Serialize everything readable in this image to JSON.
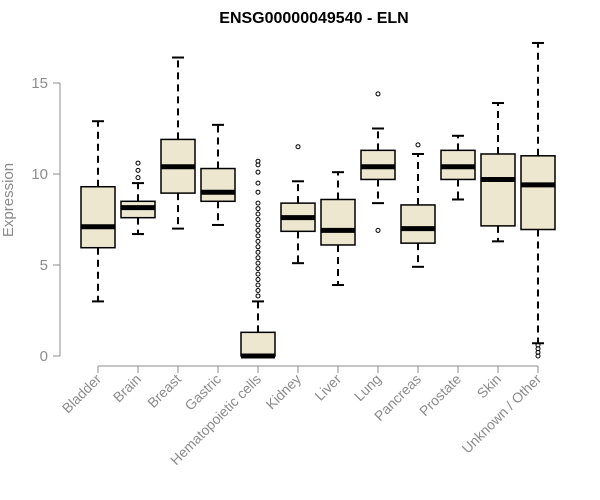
{
  "chart_data": {
    "type": "box",
    "title": "ENSG00000049540 - ELN",
    "ylabel": "Expression",
    "xlabel": "",
    "ylim": [
      0,
      17.3
    ],
    "yticks": [
      0,
      5,
      10,
      15
    ],
    "grid": false,
    "categories": [
      "Bladder",
      "Brain",
      "Breast",
      "Gastric",
      "Hematopoietic cells",
      "Kidney",
      "Liver",
      "Lung",
      "Pancreas",
      "Prostate",
      "Skin",
      "Unknown / Other"
    ],
    "boxes": [
      {
        "min": 3.0,
        "q1": 5.95,
        "median": 7.1,
        "q3": 9.3,
        "max": 12.9,
        "outliers": []
      },
      {
        "min": 6.7,
        "q1": 7.6,
        "median": 8.15,
        "q3": 8.5,
        "max": 9.5,
        "outliers": [
          9.8,
          10.2,
          10.6
        ]
      },
      {
        "min": 7.0,
        "q1": 8.95,
        "median": 10.4,
        "q3": 11.9,
        "max": 16.4,
        "outliers": []
      },
      {
        "min": 7.2,
        "q1": 8.5,
        "median": 9.0,
        "q3": 10.3,
        "max": 12.7,
        "outliers": []
      },
      {
        "min": 0.0,
        "q1": 0.0,
        "median": 0.0,
        "q3": 1.3,
        "max": 3.0,
        "outliers": [
          3.3,
          3.6,
          3.9,
          4.2,
          4.5,
          4.8,
          5.1,
          5.4,
          5.7,
          6.0,
          6.3,
          6.6,
          6.9,
          7.2,
          7.5,
          7.8,
          8.1,
          8.4,
          9.0,
          9.5,
          10.1,
          10.5,
          10.7
        ]
      },
      {
        "min": 5.1,
        "q1": 6.85,
        "median": 7.6,
        "q3": 8.4,
        "max": 9.6,
        "outliers": [
          11.5
        ]
      },
      {
        "min": 3.9,
        "q1": 6.1,
        "median": 6.9,
        "q3": 8.6,
        "max": 10.1,
        "outliers": []
      },
      {
        "min": 8.4,
        "q1": 9.7,
        "median": 10.4,
        "q3": 11.3,
        "max": 12.5,
        "outliers": [
          6.9,
          14.4
        ]
      },
      {
        "min": 4.9,
        "q1": 6.2,
        "median": 7.0,
        "q3": 8.3,
        "max": 11.1,
        "outliers": [
          11.6
        ]
      },
      {
        "min": 8.6,
        "q1": 9.7,
        "median": 10.4,
        "q3": 11.3,
        "max": 12.1,
        "outliers": []
      },
      {
        "min": 6.3,
        "q1": 7.15,
        "median": 9.7,
        "q3": 11.1,
        "max": 13.9,
        "outliers": []
      },
      {
        "min": 0.7,
        "q1": 6.95,
        "median": 9.4,
        "q3": 11.0,
        "max": 17.2,
        "outliers": [
          0.0,
          0.2,
          0.4,
          0.6
        ]
      }
    ],
    "colors": {
      "box_fill": "#ede7cf",
      "box_stroke": "#000000",
      "axis": "#8c8c8c",
      "text": "#8c8c8c",
      "title": "#000000"
    }
  }
}
